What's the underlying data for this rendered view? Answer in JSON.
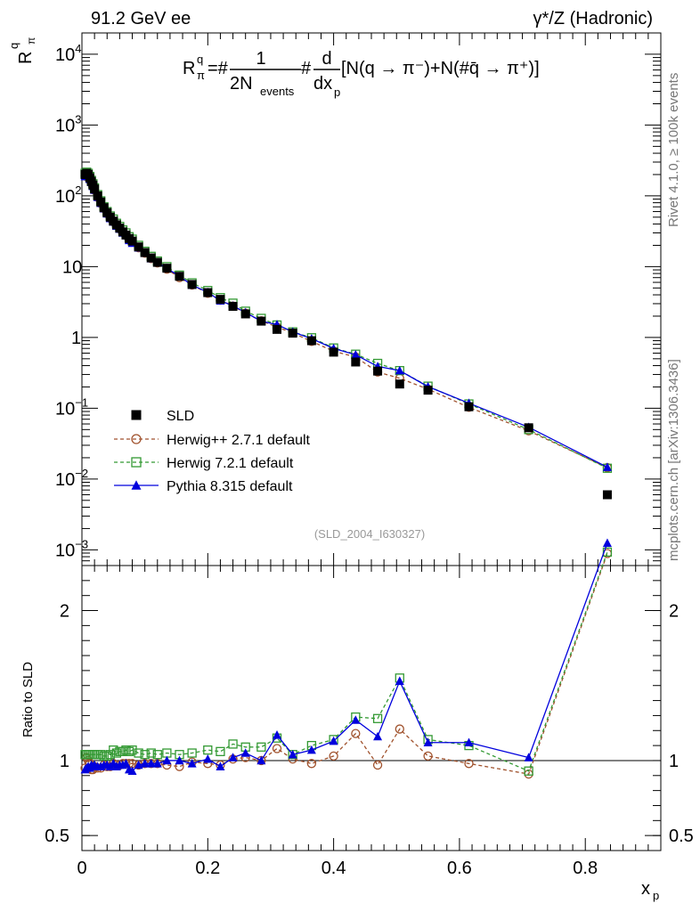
{
  "header": {
    "left": "91.2 GeV ee",
    "right": "γ*/Z (Hadronic)"
  },
  "side_labels": {
    "rivet": "Rivet 4.1.0, ≥ 100k events",
    "mcplots": "mcplots.cern.ch [arXiv:1306.3436]"
  },
  "formula": {
    "R": "R",
    "sup_q": "q",
    "sub_pi": "π",
    "eq": "=#",
    "numerator": "1",
    "denominator_main": "2N",
    "denominator_sub": "events",
    "hash": "#",
    "d_top": "d",
    "d_bottom": "dx",
    "d_bottom_sub": "p",
    "bracket": "[N(q → π⁻)+N(#q̄ → π⁺)]"
  },
  "analysis_id": "(SLD_2004_I630327)",
  "colors": {
    "data": "#000000",
    "herwigpp": "#a0522d",
    "herwig7": "#339933",
    "pythia": "#0000dd"
  },
  "chart_data": [
    {
      "type": "scatter",
      "title": "",
      "ylabel_main": "R",
      "ylabel_sup": "q",
      "ylabel_sub": "π",
      "yscale": "log",
      "xlim": [
        0,
        0.92
      ],
      "ylim": [
        0.0006,
        20000
      ],
      "yticks": [
        {
          "v": 0.001,
          "base": "10",
          "exp": "−3"
        },
        {
          "v": 0.01,
          "base": "10",
          "exp": "−2"
        },
        {
          "v": 0.1,
          "base": "10",
          "exp": "−1"
        },
        {
          "v": 1,
          "base": "1",
          "exp": ""
        },
        {
          "v": 10,
          "base": "10",
          "exp": ""
        },
        {
          "v": 100,
          "base": "10",
          "exp": "2"
        },
        {
          "v": 1000,
          "base": "10",
          "exp": "3"
        },
        {
          "v": 10000,
          "base": "10",
          "exp": "4"
        }
      ],
      "x": [
        0.005,
        0.0075,
        0.01,
        0.0125,
        0.015,
        0.0175,
        0.02,
        0.025,
        0.03,
        0.035,
        0.04,
        0.045,
        0.05,
        0.055,
        0.06,
        0.065,
        0.07,
        0.075,
        0.08,
        0.09,
        0.1,
        0.11,
        0.12,
        0.135,
        0.155,
        0.175,
        0.2,
        0.22,
        0.24,
        0.26,
        0.285,
        0.31,
        0.335,
        0.365,
        0.4,
        0.435,
        0.47,
        0.505,
        0.55,
        0.615,
        0.71,
        0.835
      ],
      "series": [
        {
          "name": "SLD",
          "marker": "square-filled",
          "values": [
            200,
            208,
            200,
            180,
            160,
            142,
            125,
            100,
            82,
            68,
            58,
            50,
            44,
            39,
            35,
            31,
            28,
            25,
            23,
            19,
            15.8,
            13.3,
            11.5,
            9.5,
            7.3,
            5.6,
            4.3,
            3.45,
            2.75,
            2.15,
            1.7,
            1.3,
            1.15,
            0.9,
            0.62,
            0.45,
            0.335,
            0.22,
            0.18,
            0.105,
            0.053,
            0.006
          ]
        },
        {
          "name": "Herwig++ 2.7.1 default",
          "marker": "circle-open",
          "dashed": true,
          "values": [
            190,
            212,
            200,
            176,
            151,
            134,
            120,
            95,
            78,
            66,
            56,
            48,
            43,
            38,
            34,
            30.5,
            27.5,
            24.5,
            22.5,
            18.5,
            15.5,
            13,
            11.3,
            9.2,
            7,
            5.5,
            4.2,
            3.35,
            2.78,
            2.2,
            1.72,
            1.4,
            1.16,
            0.88,
            0.64,
            0.53,
            0.325,
            0.265,
            0.186,
            0.103,
            0.048,
            0.0145
          ]
        },
        {
          "name": "Herwig 7.2.1 default",
          "marker": "square-open",
          "dashed": true,
          "values": [
            208,
            216,
            208,
            188,
            166,
            148,
            130,
            104,
            85,
            70,
            60,
            52,
            47,
            41,
            37,
            33,
            30,
            26.5,
            24.5,
            20,
            16.5,
            14,
            12,
            10,
            7.6,
            5.9,
            4.6,
            3.65,
            3.05,
            2.35,
            1.86,
            1.5,
            1.2,
            0.99,
            0.71,
            0.58,
            0.43,
            0.34,
            0.205,
            0.115,
            0.05,
            0.0142
          ]
        },
        {
          "name": "Pythia 8.315 default",
          "marker": "triangle-filled",
          "dashed": false,
          "values": [
            188,
            198,
            192,
            172,
            155,
            137,
            121,
            96,
            79,
            66,
            56,
            48,
            43,
            37.5,
            34,
            30,
            27.5,
            23.5,
            21.5,
            18.5,
            15.5,
            13,
            11.3,
            9.5,
            7.3,
            5.5,
            4.35,
            3.3,
            2.8,
            2.25,
            1.7,
            1.52,
            1.2,
            0.96,
            0.7,
            0.57,
            0.39,
            0.34,
            0.202,
            0.118,
            0.054,
            0.0147
          ]
        }
      ]
    },
    {
      "type": "line",
      "ylabel": "Ratio to SLD",
      "xlabel_main": "x",
      "xlabel_sub": "p",
      "xlim": [
        0,
        0.92
      ],
      "ylim": [
        0.4,
        2.3
      ],
      "reference": 1,
      "yticks": [
        {
          "v": 0.5,
          "label": "0.5"
        },
        {
          "v": 1,
          "label": "1"
        },
        {
          "v": 2,
          "label": "2"
        }
      ],
      "xticks": [
        {
          "v": 0,
          "label": "0"
        },
        {
          "v": 0.2,
          "label": "0.2"
        },
        {
          "v": 0.4,
          "label": "0.4"
        },
        {
          "v": 0.6,
          "label": "0.6"
        },
        {
          "v": 0.8,
          "label": "0.8"
        }
      ],
      "x": [
        0.005,
        0.0075,
        0.01,
        0.0125,
        0.015,
        0.0175,
        0.02,
        0.025,
        0.03,
        0.035,
        0.04,
        0.045,
        0.05,
        0.055,
        0.06,
        0.065,
        0.07,
        0.075,
        0.08,
        0.09,
        0.1,
        0.11,
        0.12,
        0.135,
        0.155,
        0.175,
        0.2,
        0.22,
        0.24,
        0.26,
        0.285,
        0.31,
        0.335,
        0.365,
        0.4,
        0.435,
        0.47,
        0.505,
        0.55,
        0.615,
        0.71,
        0.835
      ],
      "series": [
        {
          "name": "Herwig++ 2.7.1 default",
          "marker": "circle-open",
          "dashed": true,
          "values": [
            0.95,
            1.02,
            1.0,
            0.98,
            0.94,
            0.94,
            0.96,
            0.95,
            0.95,
            0.97,
            0.96,
            0.96,
            0.98,
            0.97,
            0.97,
            0.98,
            0.98,
            0.98,
            0.98,
            0.97,
            0.98,
            0.98,
            0.98,
            0.97,
            0.96,
            0.99,
            0.98,
            0.97,
            1.01,
            1.02,
            1.0,
            1.08,
            1.01,
            0.98,
            1.03,
            1.18,
            0.97,
            1.21,
            1.03,
            0.98,
            0.91,
            2.38
          ]
        },
        {
          "name": "Herwig 7.2.1 default",
          "marker": "square-open",
          "dashed": true,
          "values": [
            1.04,
            1.04,
            1.04,
            1.04,
            1.04,
            1.04,
            1.04,
            1.04,
            1.04,
            1.03,
            1.03,
            1.04,
            1.07,
            1.05,
            1.06,
            1.06,
            1.07,
            1.06,
            1.07,
            1.05,
            1.04,
            1.05,
            1.04,
            1.05,
            1.04,
            1.05,
            1.07,
            1.06,
            1.11,
            1.09,
            1.09,
            1.15,
            1.04,
            1.1,
            1.14,
            1.29,
            1.28,
            1.55,
            1.14,
            1.1,
            0.93,
            2.39
          ]
        },
        {
          "name": "Pythia 8.315 default",
          "marker": "triangle-filled",
          "dashed": false,
          "values": [
            0.94,
            0.95,
            0.96,
            0.95,
            0.97,
            0.96,
            0.97,
            0.96,
            0.96,
            0.97,
            0.97,
            0.96,
            0.98,
            0.96,
            0.97,
            0.97,
            0.98,
            0.94,
            0.93,
            0.97,
            0.98,
            0.98,
            0.98,
            1.0,
            1.0,
            0.98,
            1.01,
            0.96,
            1.02,
            1.05,
            1.0,
            1.17,
            1.04,
            1.07,
            1.13,
            1.27,
            1.16,
            1.53,
            1.12,
            1.12,
            1.02,
            2.45
          ]
        }
      ]
    }
  ]
}
